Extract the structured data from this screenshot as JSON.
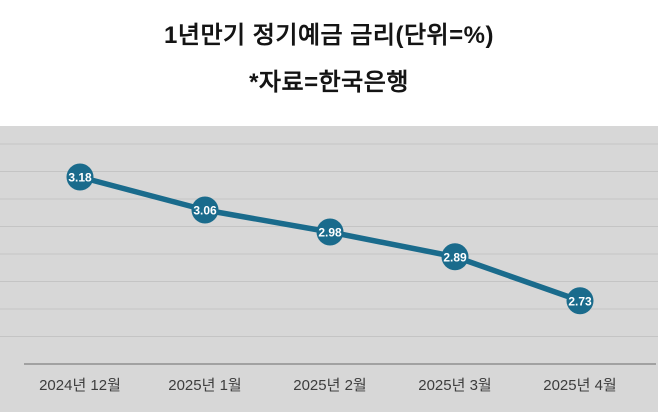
{
  "title": {
    "line1": "1년만기 정기예금 금리(단위=%)",
    "line2": "*자료=한국은행"
  },
  "chart_data": {
    "type": "line",
    "title": "1년만기 정기예금 금리(단위=%)",
    "subtitle": "*자료=한국은행",
    "categories": [
      "2024년 12월",
      "2025년 1월",
      "2025년 2월",
      "2025년 3월",
      "2025년 4월"
    ],
    "values": [
      3.18,
      3.06,
      2.98,
      2.89,
      2.73
    ],
    "ylim": [
      2.5,
      3.4
    ],
    "gridline_step": 0.1,
    "grid": true,
    "legend": "none",
    "line_color": "#1a6b8c",
    "marker_color": "#1a6b8c",
    "label_color": "#ffffff",
    "plot_background": "#d7d7d7",
    "gridline_color": "#c4c4c4",
    "axis_line_color": "#8f8f8f",
    "x_label_color": "#3d3d3d"
  }
}
